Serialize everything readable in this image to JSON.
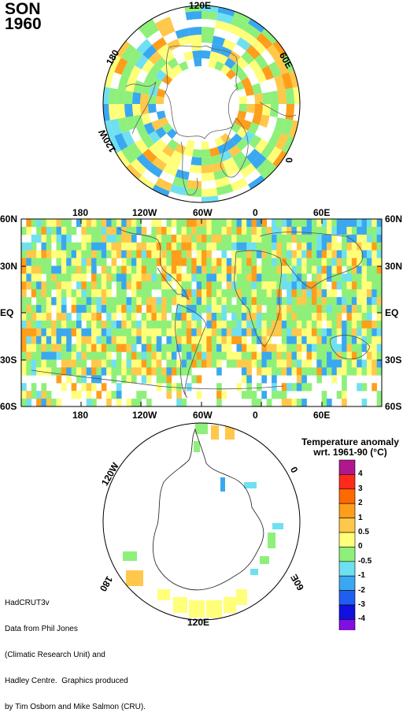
{
  "header": {
    "season": "SON",
    "year": "1960"
  },
  "north_polar": {
    "labels": {
      "top": "120E",
      "upper_right": "60E",
      "right": "0",
      "upper_left": "180",
      "left": "120W"
    }
  },
  "global_map": {
    "x_labels_top": [
      "180",
      "120W",
      "60W",
      "0",
      "60E"
    ],
    "x_labels_bottom": [
      "180",
      "120W",
      "60W",
      "0",
      "60E"
    ],
    "y_labels": [
      "60N",
      "30N",
      "EQ",
      "30S",
      "60S"
    ]
  },
  "south_polar": {
    "labels": {
      "upper_left": "120W",
      "right": "0",
      "left": "180",
      "lower_right": "60E",
      "bottom": "120E"
    }
  },
  "legend": {
    "title_line1": "Temperature anomaly",
    "title_line2": "wrt. 1961-90  (°C)",
    "levels": [
      "4",
      "3",
      "2",
      "1",
      "0.5",
      "0",
      "-0.5",
      "-1",
      "-2",
      "-3",
      "-4"
    ],
    "colors": [
      "#b0178f",
      "#ff2a1a",
      "#ff6a00",
      "#ff9e1a",
      "#ffc84a",
      "#ffff7a",
      "#8ef07a",
      "#6fe0f0",
      "#3aa8f0",
      "#1f5ff0",
      "#1010e0",
      "#8010e0"
    ]
  },
  "credits": {
    "lines": [
      "HadCRUT3v",
      "Data from Phil Jones",
      "(Climatic Research Unit) and",
      "Hadley Centre.  Graphics produced",
      "by Tim Osborn and Mike Salmon (CRU)."
    ]
  }
}
